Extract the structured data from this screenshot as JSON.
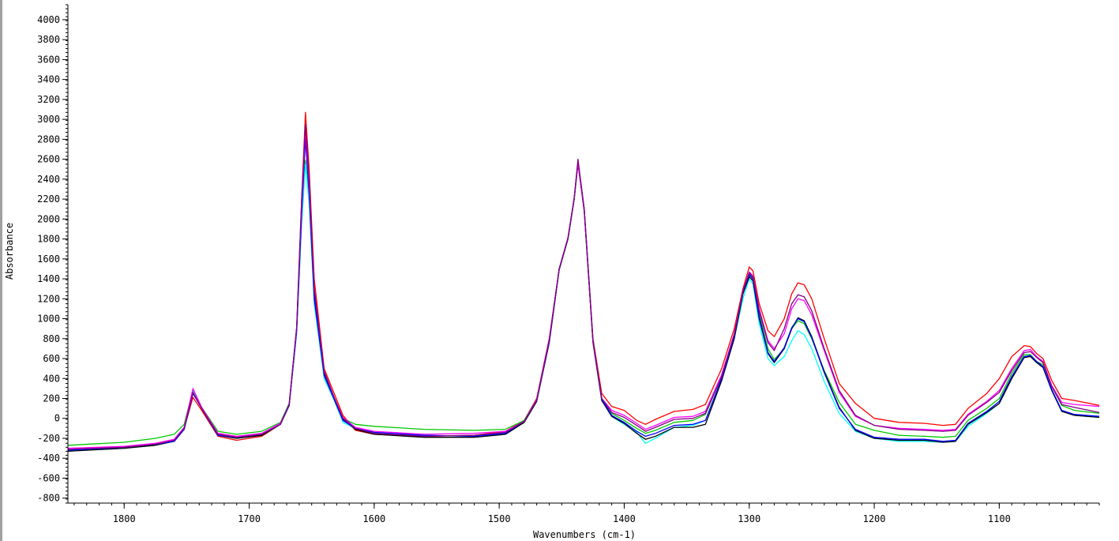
{
  "chart_data": {
    "type": "line",
    "title": "",
    "xlabel": "Wavenumbers (cm-1)",
    "ylabel": "Absorbance",
    "x_reversed": true,
    "xlim": [
      1845,
      1020
    ],
    "ylim": [
      -850,
      4150
    ],
    "x_ticks": [
      1800,
      1700,
      1600,
      1500,
      1400,
      1300,
      1200,
      1100
    ],
    "y_ticks": [
      -800,
      -600,
      -400,
      -200,
      0,
      200,
      400,
      600,
      800,
      1000,
      1200,
      1400,
      1600,
      1800,
      2000,
      2200,
      2400,
      2600,
      2800,
      3000,
      3200,
      3400,
      3600,
      3800,
      4000
    ],
    "grid": false,
    "legend": "none",
    "x": [
      1845,
      1800,
      1775,
      1760,
      1752,
      1745,
      1738,
      1725,
      1710,
      1690,
      1675,
      1668,
      1662,
      1658,
      1655,
      1652,
      1648,
      1640,
      1632,
      1625,
      1615,
      1600,
      1560,
      1520,
      1495,
      1480,
      1470,
      1460,
      1452,
      1445,
      1440,
      1437,
      1432,
      1425,
      1418,
      1410,
      1400,
      1390,
      1383,
      1375,
      1360,
      1345,
      1335,
      1322,
      1312,
      1305,
      1300,
      1297,
      1292,
      1285,
      1280,
      1272,
      1266,
      1261,
      1256,
      1250,
      1240,
      1228,
      1215,
      1200,
      1180,
      1160,
      1145,
      1135,
      1125,
      1110,
      1100,
      1090,
      1080,
      1075,
      1070,
      1065,
      1058,
      1050,
      1040,
      1020
    ],
    "series": [
      {
        "color": "#ff0000",
        "values": [
          -300,
          -290,
          -260,
          -220,
          -100,
          210,
          80,
          -180,
          -220,
          -180,
          -60,
          150,
          900,
          2200,
          3070,
          2500,
          1400,
          500,
          250,
          30,
          -120,
          -160,
          -180,
          -170,
          -130,
          -20,
          200,
          800,
          1500,
          1800,
          2200,
          2550,
          2100,
          800,
          250,
          120,
          80,
          -20,
          -60,
          -10,
          70,
          90,
          140,
          500,
          900,
          1300,
          1520,
          1480,
          1150,
          880,
          820,
          1000,
          1250,
          1360,
          1340,
          1200,
          800,
          350,
          150,
          0,
          -40,
          -50,
          -70,
          -60,
          100,
          250,
          400,
          620,
          730,
          720,
          650,
          600,
          380,
          200,
          180,
          130
        ]
      },
      {
        "color": "#00c800",
        "values": [
          -270,
          -240,
          -200,
          -160,
          -60,
          280,
          110,
          -130,
          -160,
          -130,
          -40,
          150,
          900,
          2000,
          2590,
          2200,
          1200,
          450,
          200,
          0,
          -60,
          -80,
          -110,
          -120,
          -110,
          -20,
          190,
          780,
          1500,
          1800,
          2200,
          2570,
          2100,
          780,
          200,
          50,
          -20,
          -100,
          -150,
          -120,
          -40,
          -20,
          40,
          420,
          850,
          1250,
          1450,
          1400,
          1050,
          700,
          590,
          700,
          900,
          980,
          950,
          800,
          480,
          160,
          -60,
          -120,
          -170,
          -180,
          -190,
          -180,
          -20,
          100,
          200,
          450,
          640,
          640,
          570,
          540,
          320,
          130,
          80,
          50
        ]
      },
      {
        "color": "#00ffff",
        "values": [
          -320,
          -300,
          -270,
          -230,
          -110,
          270,
          100,
          -170,
          -200,
          -170,
          -60,
          130,
          850,
          1950,
          2550,
          2150,
          1150,
          400,
          180,
          -40,
          -100,
          -140,
          -170,
          -180,
          -150,
          -40,
          170,
          760,
          1490,
          1800,
          2200,
          2560,
          2080,
          760,
          180,
          20,
          -60,
          -140,
          -250,
          -200,
          -90,
          -70,
          -20,
          380,
          800,
          1200,
          1400,
          1350,
          950,
          600,
          530,
          620,
          780,
          880,
          840,
          700,
          370,
          50,
          -130,
          -200,
          -230,
          -230,
          -240,
          -230,
          -80,
          50,
          150,
          400,
          620,
          630,
          560,
          520,
          280,
          80,
          30,
          10
        ]
      },
      {
        "color": "#000000",
        "values": [
          -330,
          -300,
          -270,
          -230,
          -110,
          260,
          100,
          -170,
          -200,
          -170,
          -60,
          130,
          900,
          2100,
          2850,
          2300,
          1250,
          450,
          200,
          -10,
          -110,
          -160,
          -190,
          -190,
          -160,
          -40,
          170,
          760,
          1490,
          1800,
          2200,
          2560,
          2080,
          760,
          180,
          20,
          -50,
          -150,
          -210,
          -180,
          -90,
          -90,
          -60,
          380,
          800,
          1250,
          1420,
          1380,
          1000,
          650,
          560,
          700,
          900,
          1010,
          980,
          820,
          470,
          110,
          -120,
          -200,
          -220,
          -220,
          -240,
          -230,
          -60,
          60,
          150,
          400,
          610,
          620,
          560,
          510,
          280,
          70,
          30,
          10
        ]
      },
      {
        "color": "#0000ff",
        "values": [
          -320,
          -290,
          -260,
          -230,
          -110,
          250,
          100,
          -170,
          -190,
          -160,
          -60,
          130,
          880,
          2050,
          2800,
          2250,
          1200,
          430,
          190,
          -20,
          -100,
          -140,
          -170,
          -180,
          -150,
          -30,
          180,
          770,
          1500,
          1810,
          2210,
          2580,
          2100,
          770,
          190,
          30,
          -40,
          -130,
          -180,
          -150,
          -70,
          -60,
          -20,
          400,
          820,
          1270,
          1440,
          1400,
          1020,
          660,
          570,
          710,
          910,
          1000,
          970,
          810,
          460,
          100,
          -110,
          -190,
          -210,
          -210,
          -230,
          -220,
          -50,
          70,
          170,
          420,
          620,
          630,
          570,
          520,
          290,
          80,
          40,
          20
        ]
      },
      {
        "color": "#ff00ff",
        "values": [
          -300,
          -280,
          -250,
          -210,
          -90,
          300,
          110,
          -150,
          -180,
          -150,
          -50,
          140,
          900,
          2150,
          2900,
          2350,
          1300,
          470,
          210,
          10,
          -90,
          -130,
          -160,
          -150,
          -130,
          -30,
          190,
          790,
          1500,
          1810,
          2210,
          2560,
          2080,
          770,
          200,
          80,
          30,
          -50,
          -110,
          -70,
          10,
          20,
          70,
          440,
          850,
          1280,
          1470,
          1430,
          1100,
          780,
          700,
          850,
          1100,
          1200,
          1180,
          1040,
          680,
          260,
          20,
          -70,
          -100,
          -110,
          -120,
          -110,
          40,
          170,
          280,
          500,
          680,
          690,
          620,
          570,
          330,
          160,
          140,
          120
        ]
      },
      {
        "color": "#800080",
        "values": [
          -310,
          -290,
          -260,
          -220,
          -100,
          260,
          100,
          -160,
          -190,
          -160,
          -60,
          140,
          920,
          2200,
          2950,
          2400,
          1300,
          470,
          210,
          0,
          -100,
          -150,
          -180,
          -170,
          -140,
          -30,
          180,
          780,
          1500,
          1810,
          2210,
          2600,
          2100,
          780,
          200,
          60,
          10,
          -70,
          -130,
          -90,
          -10,
          0,
          50,
          420,
          840,
          1280,
          1460,
          1420,
          1080,
          760,
          680,
          900,
          1150,
          1240,
          1220,
          1080,
          700,
          280,
          30,
          -70,
          -110,
          -120,
          -130,
          -120,
          30,
          160,
          260,
          480,
          660,
          670,
          610,
          560,
          320,
          140,
          110,
          60
        ]
      }
    ]
  }
}
